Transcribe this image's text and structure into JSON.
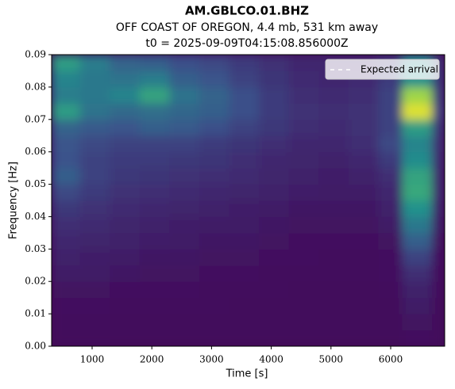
{
  "chart_data": {
    "type": "heatmap",
    "title": "AM.GBLCO.01.BHZ",
    "subtitle": "OFF COAST OF OREGON, 4.4 mb, 531 km away",
    "subtitle2": "t0 = 2025-09-09T04:15:08.856000Z",
    "x_label": "Time [s]",
    "y_label": "Frequency [Hz]",
    "colormap": "viridis",
    "legend": "upper right",
    "series": [
      {
        "name": "Expected arrival",
        "color": "#ffffff"
      }
    ],
    "xlim": [
      322,
      6904
    ],
    "ylim": [
      0,
      0.09
    ],
    "xticks": [
      1000,
      2000,
      3000,
      4000,
      5000,
      6000
    ],
    "yticks": [
      {
        "value": 0,
        "label": "0.00"
      },
      {
        "value": 0.01,
        "label": "0.01"
      },
      {
        "value": 0.02,
        "label": "0.02"
      },
      {
        "value": 0.03,
        "label": "0.03"
      },
      {
        "value": 0.04,
        "label": "0.04"
      },
      {
        "value": 0.05,
        "label": "0.05"
      },
      {
        "value": 0.06,
        "label": "0.06"
      },
      {
        "value": 0.07,
        "label": "0.07"
      },
      {
        "value": 0.08,
        "label": "0.08"
      },
      {
        "value": 0.09,
        "label": "0.09"
      }
    ],
    "x_edges": [
      322,
      800,
      1300,
      1800,
      2300,
      2800,
      3300,
      3800,
      4300,
      4800,
      5300,
      5800,
      6200,
      6700,
      6904
    ],
    "y_edges": [
      0,
      0.005,
      0.01,
      0.015,
      0.02,
      0.025,
      0.03,
      0.035,
      0.04,
      0.045,
      0.05,
      0.055,
      0.06,
      0.065,
      0.07,
      0.075,
      0.08,
      0.085,
      0.09
    ],
    "z": [
      [
        0.03,
        0.03,
        0.03,
        0.03,
        0.03,
        0.03,
        0.03,
        0.03,
        0.03,
        0.03,
        0.03,
        0.03,
        0.05,
        0.03
      ],
      [
        0.04,
        0.04,
        0.03,
        0.03,
        0.03,
        0.03,
        0.03,
        0.03,
        0.03,
        0.03,
        0.03,
        0.03,
        0.06,
        0.03
      ],
      [
        0.05,
        0.05,
        0.04,
        0.04,
        0.04,
        0.04,
        0.03,
        0.03,
        0.03,
        0.03,
        0.03,
        0.03,
        0.08,
        0.03
      ],
      [
        0.06,
        0.06,
        0.05,
        0.05,
        0.05,
        0.04,
        0.04,
        0.04,
        0.03,
        0.03,
        0.03,
        0.04,
        0.1,
        0.04
      ],
      [
        0.08,
        0.08,
        0.07,
        0.06,
        0.06,
        0.05,
        0.05,
        0.04,
        0.04,
        0.04,
        0.04,
        0.05,
        0.14,
        0.04
      ],
      [
        0.1,
        0.09,
        0.08,
        0.07,
        0.07,
        0.06,
        0.06,
        0.05,
        0.05,
        0.04,
        0.04,
        0.05,
        0.2,
        0.05
      ],
      [
        0.12,
        0.11,
        0.1,
        0.09,
        0.08,
        0.07,
        0.07,
        0.06,
        0.05,
        0.05,
        0.05,
        0.06,
        0.3,
        0.06
      ],
      [
        0.14,
        0.13,
        0.11,
        0.1,
        0.09,
        0.08,
        0.08,
        0.07,
        0.06,
        0.06,
        0.06,
        0.08,
        0.4,
        0.08
      ],
      [
        0.17,
        0.15,
        0.13,
        0.12,
        0.11,
        0.1,
        0.09,
        0.08,
        0.07,
        0.07,
        0.07,
        0.1,
        0.5,
        0.1
      ],
      [
        0.22,
        0.18,
        0.15,
        0.14,
        0.13,
        0.12,
        0.11,
        0.1,
        0.09,
        0.08,
        0.08,
        0.12,
        0.6,
        0.12
      ],
      [
        0.3,
        0.2,
        0.17,
        0.16,
        0.15,
        0.14,
        0.13,
        0.11,
        0.1,
        0.09,
        0.1,
        0.14,
        0.58,
        0.12
      ],
      [
        0.25,
        0.2,
        0.18,
        0.18,
        0.17,
        0.16,
        0.14,
        0.12,
        0.11,
        0.1,
        0.12,
        0.18,
        0.48,
        0.13
      ],
      [
        0.26,
        0.22,
        0.2,
        0.2,
        0.2,
        0.18,
        0.16,
        0.14,
        0.12,
        0.12,
        0.14,
        0.22,
        0.45,
        0.14
      ],
      [
        0.32,
        0.28,
        0.26,
        0.3,
        0.28,
        0.24,
        0.2,
        0.17,
        0.14,
        0.13,
        0.15,
        0.2,
        0.55,
        0.16
      ],
      [
        0.55,
        0.38,
        0.34,
        0.36,
        0.33,
        0.3,
        0.24,
        0.18,
        0.15,
        0.14,
        0.15,
        0.2,
        0.95,
        0.2
      ],
      [
        0.42,
        0.4,
        0.45,
        0.58,
        0.38,
        0.32,
        0.24,
        0.18,
        0.14,
        0.13,
        0.14,
        0.2,
        0.85,
        0.18
      ],
      [
        0.45,
        0.4,
        0.38,
        0.42,
        0.3,
        0.26,
        0.2,
        0.16,
        0.13,
        0.12,
        0.13,
        0.18,
        0.5,
        0.16
      ],
      [
        0.55,
        0.42,
        0.32,
        0.3,
        0.24,
        0.22,
        0.18,
        0.15,
        0.12,
        0.12,
        0.12,
        0.16,
        0.48,
        0.15
      ]
    ]
  }
}
